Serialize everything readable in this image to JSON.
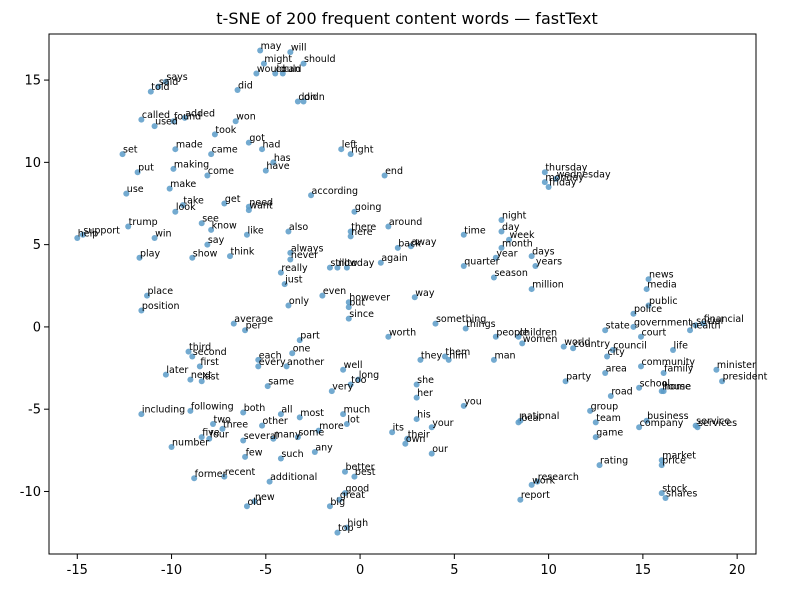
{
  "chart_data": {
    "type": "scatter",
    "title": "t-SNE of 200 frequent content words — fastText",
    "xlabel": "",
    "ylabel": "",
    "xlim": [
      -16.5,
      21.0
    ],
    "ylim": [
      -13.8,
      17.8
    ],
    "xticks": [
      -15,
      -10,
      -5,
      0,
      5,
      10,
      15,
      20
    ],
    "yticks": [
      -10,
      -5,
      0,
      5,
      10,
      15
    ],
    "grid": false,
    "marker_color": "#5b9bc8",
    "points": [
      {
        "label": "may",
        "x": -5.3,
        "y": 16.8
      },
      {
        "label": "will",
        "x": -3.7,
        "y": 16.7
      },
      {
        "label": "might",
        "x": -5.1,
        "y": 16.0
      },
      {
        "label": "should",
        "x": -3.0,
        "y": 16.0
      },
      {
        "label": "would",
        "x": -5.5,
        "y": 15.4
      },
      {
        "label": "can",
        "x": -4.1,
        "y": 15.4
      },
      {
        "label": "could",
        "x": -4.5,
        "y": 15.4
      },
      {
        "label": "says",
        "x": -10.3,
        "y": 14.9
      },
      {
        "label": "said",
        "x": -10.7,
        "y": 14.6
      },
      {
        "label": "told",
        "x": -11.1,
        "y": 14.3
      },
      {
        "label": "did",
        "x": -6.5,
        "y": 14.4
      },
      {
        "label": "don",
        "x": -3.3,
        "y": 13.7
      },
      {
        "label": "didn",
        "x": -3.0,
        "y": 13.7
      },
      {
        "label": "called",
        "x": -11.6,
        "y": 12.6
      },
      {
        "label": "used",
        "x": -10.9,
        "y": 12.2
      },
      {
        "label": "added",
        "x": -9.3,
        "y": 12.7
      },
      {
        "label": "found",
        "x": -9.9,
        "y": 12.5
      },
      {
        "label": "won",
        "x": -6.6,
        "y": 12.5
      },
      {
        "label": "took",
        "x": -7.7,
        "y": 11.7
      },
      {
        "label": "got",
        "x": -5.9,
        "y": 11.2
      },
      {
        "label": "set",
        "x": -12.6,
        "y": 10.5
      },
      {
        "label": "made",
        "x": -9.8,
        "y": 10.8
      },
      {
        "label": "came",
        "x": -7.9,
        "y": 10.5
      },
      {
        "label": "had",
        "x": -5.2,
        "y": 10.8
      },
      {
        "label": "has",
        "x": -4.6,
        "y": 10.0
      },
      {
        "label": "left",
        "x": -1.0,
        "y": 10.8
      },
      {
        "label": "right",
        "x": -0.5,
        "y": 10.5
      },
      {
        "label": "put",
        "x": -11.8,
        "y": 9.4
      },
      {
        "label": "making",
        "x": -9.9,
        "y": 9.6
      },
      {
        "label": "come",
        "x": -8.1,
        "y": 9.2
      },
      {
        "label": "have",
        "x": -5.0,
        "y": 9.5
      },
      {
        "label": "end",
        "x": 1.3,
        "y": 9.2
      },
      {
        "label": "thursday",
        "x": 9.8,
        "y": 9.4
      },
      {
        "label": "wednesday",
        "x": 10.4,
        "y": 9.0
      },
      {
        "label": "monday",
        "x": 9.8,
        "y": 8.8
      },
      {
        "label": "friday",
        "x": 10.0,
        "y": 8.5
      },
      {
        "label": "use",
        "x": -12.4,
        "y": 8.1
      },
      {
        "label": "make",
        "x": -10.1,
        "y": 8.4
      },
      {
        "label": "according",
        "x": -2.6,
        "y": 8.0
      },
      {
        "label": "take",
        "x": -9.4,
        "y": 7.4
      },
      {
        "label": "get",
        "x": -7.2,
        "y": 7.5
      },
      {
        "label": "look",
        "x": -9.8,
        "y": 7.0
      },
      {
        "label": "need",
        "x": -5.9,
        "y": 7.3
      },
      {
        "label": "want",
        "x": -5.9,
        "y": 7.1
      },
      {
        "label": "going",
        "x": -0.3,
        "y": 7.0
      },
      {
        "label": "trump",
        "x": -12.3,
        "y": 6.1
      },
      {
        "label": "see",
        "x": -8.4,
        "y": 6.3
      },
      {
        "label": "know",
        "x": -7.9,
        "y": 5.9
      },
      {
        "label": "like",
        "x": -6.0,
        "y": 5.6
      },
      {
        "label": "also",
        "x": -3.8,
        "y": 5.8
      },
      {
        "label": "there",
        "x": -0.5,
        "y": 5.8
      },
      {
        "label": "around",
        "x": 1.5,
        "y": 6.1
      },
      {
        "label": "night",
        "x": 7.5,
        "y": 6.5
      },
      {
        "label": "day",
        "x": 7.5,
        "y": 5.8
      },
      {
        "label": "time",
        "x": 5.5,
        "y": 5.6
      },
      {
        "label": "week",
        "x": 7.9,
        "y": 5.3
      },
      {
        "label": "help",
        "x": -15.0,
        "y": 5.4
      },
      {
        "label": "support",
        "x": -14.7,
        "y": 5.6
      },
      {
        "label": "win",
        "x": -10.9,
        "y": 5.4
      },
      {
        "label": "here",
        "x": -0.5,
        "y": 5.5
      },
      {
        "label": "say",
        "x": -8.1,
        "y": 5.0
      },
      {
        "label": "back",
        "x": 2.0,
        "y": 4.8
      },
      {
        "label": "away",
        "x": 2.7,
        "y": 4.9
      },
      {
        "label": "month",
        "x": 7.5,
        "y": 4.8
      },
      {
        "label": "play",
        "x": -11.7,
        "y": 4.2
      },
      {
        "label": "show",
        "x": -8.9,
        "y": 4.2
      },
      {
        "label": "think",
        "x": -6.9,
        "y": 4.3
      },
      {
        "label": "always",
        "x": -3.7,
        "y": 4.5
      },
      {
        "label": "never",
        "x": -3.7,
        "y": 4.1
      },
      {
        "label": "days",
        "x": 9.1,
        "y": 4.3
      },
      {
        "label": "year",
        "x": 7.2,
        "y": 4.2
      },
      {
        "label": "again",
        "x": 1.1,
        "y": 3.9
      },
      {
        "label": "quarter",
        "x": 5.5,
        "y": 3.7
      },
      {
        "label": "years",
        "x": 9.3,
        "y": 3.7
      },
      {
        "label": "really",
        "x": -4.2,
        "y": 3.3
      },
      {
        "label": "still",
        "x": -1.6,
        "y": 3.6
      },
      {
        "label": "now",
        "x": -1.2,
        "y": 3.6
      },
      {
        "label": "today",
        "x": -0.7,
        "y": 3.6
      },
      {
        "label": "season",
        "x": 7.1,
        "y": 3.0
      },
      {
        "label": "news",
        "x": 15.3,
        "y": 2.9
      },
      {
        "label": "just",
        "x": -4.0,
        "y": 2.6
      },
      {
        "label": "million",
        "x": 9.1,
        "y": 2.3
      },
      {
        "label": "media",
        "x": 15.2,
        "y": 2.3
      },
      {
        "label": "place",
        "x": -11.3,
        "y": 1.9
      },
      {
        "label": "even",
        "x": -2.0,
        "y": 1.9
      },
      {
        "label": "way",
        "x": 2.9,
        "y": 1.8
      },
      {
        "label": "however",
        "x": -0.6,
        "y": 1.5
      },
      {
        "label": "only",
        "x": -3.8,
        "y": 1.3
      },
      {
        "label": "but",
        "x": -0.6,
        "y": 1.2
      },
      {
        "label": "position",
        "x": -11.6,
        "y": 1.0
      },
      {
        "label": "public",
        "x": 15.3,
        "y": 1.3
      },
      {
        "label": "police",
        "x": 14.5,
        "y": 0.8
      },
      {
        "label": "since",
        "x": -0.6,
        "y": 0.5
      },
      {
        "label": "average",
        "x": -6.7,
        "y": 0.2
      },
      {
        "label": "something",
        "x": 4.0,
        "y": 0.2
      },
      {
        "label": "social",
        "x": 17.8,
        "y": 0.1
      },
      {
        "label": "financial",
        "x": 18.2,
        "y": 0.2
      },
      {
        "label": "per",
        "x": -6.1,
        "y": -0.2
      },
      {
        "label": "things",
        "x": 5.6,
        "y": -0.1
      },
      {
        "label": "government",
        "x": 14.5,
        "y": 0.0
      },
      {
        "label": "state",
        "x": 13.0,
        "y": -0.2
      },
      {
        "label": "health",
        "x": 17.5,
        "y": -0.2
      },
      {
        "label": "part",
        "x": -3.2,
        "y": -0.8
      },
      {
        "label": "worth",
        "x": 1.5,
        "y": -0.6
      },
      {
        "label": "people",
        "x": 7.2,
        "y": -0.6
      },
      {
        "label": "children",
        "x": 8.4,
        "y": -0.6
      },
      {
        "label": "court",
        "x": 14.9,
        "y": -0.6
      },
      {
        "label": "women",
        "x": 8.6,
        "y": -1.0
      },
      {
        "label": "world",
        "x": 10.8,
        "y": -1.2
      },
      {
        "label": "country",
        "x": 11.3,
        "y": -1.3
      },
      {
        "label": "third",
        "x": -9.1,
        "y": -1.5
      },
      {
        "label": "second",
        "x": -8.9,
        "y": -1.8
      },
      {
        "label": "one",
        "x": -3.6,
        "y": -1.6
      },
      {
        "label": "council",
        "x": 13.4,
        "y": -1.4
      },
      {
        "label": "life",
        "x": 16.6,
        "y": -1.4
      },
      {
        "label": "city",
        "x": 13.1,
        "y": -1.8
      },
      {
        "label": "each",
        "x": -5.4,
        "y": -2.0
      },
      {
        "label": "first",
        "x": -8.5,
        "y": -2.4
      },
      {
        "label": "every",
        "x": -5.4,
        "y": -2.4
      },
      {
        "label": "another",
        "x": -3.9,
        "y": -2.4
      },
      {
        "label": "they",
        "x": 3.2,
        "y": -2.0
      },
      {
        "label": "them",
        "x": 4.5,
        "y": -1.8
      },
      {
        "label": "him",
        "x": 4.7,
        "y": -2.0
      },
      {
        "label": "man",
        "x": 7.1,
        "y": -2.0
      },
      {
        "label": "well",
        "x": -0.9,
        "y": -2.6
      },
      {
        "label": "community",
        "x": 14.9,
        "y": -2.4
      },
      {
        "label": "area",
        "x": 13.0,
        "y": -2.8
      },
      {
        "label": "family",
        "x": 16.1,
        "y": -2.8
      },
      {
        "label": "minister",
        "x": 18.9,
        "y": -2.6
      },
      {
        "label": "later",
        "x": -10.3,
        "y": -2.9
      },
      {
        "label": "next",
        "x": -9.0,
        "y": -3.2
      },
      {
        "label": "last",
        "x": -8.4,
        "y": -3.3
      },
      {
        "label": "long",
        "x": -0.1,
        "y": -3.2
      },
      {
        "label": "party",
        "x": 10.9,
        "y": -3.3
      },
      {
        "label": "president",
        "x": 19.2,
        "y": -3.3
      },
      {
        "label": "same",
        "x": -4.9,
        "y": -3.6
      },
      {
        "label": "too",
        "x": -0.5,
        "y": -3.5
      },
      {
        "label": "very",
        "x": -1.5,
        "y": -3.9
      },
      {
        "label": "she",
        "x": 3.0,
        "y": -3.5
      },
      {
        "label": "school",
        "x": 14.8,
        "y": -3.7
      },
      {
        "label": "house",
        "x": 16.0,
        "y": -3.9
      },
      {
        "label": "home",
        "x": 16.1,
        "y": -3.9
      },
      {
        "label": "road",
        "x": 13.3,
        "y": -4.2
      },
      {
        "label": "her",
        "x": 3.0,
        "y": -4.3
      },
      {
        "label": "you",
        "x": 5.5,
        "y": -4.8
      },
      {
        "label": "group",
        "x": 12.2,
        "y": -5.1
      },
      {
        "label": "including",
        "x": -11.6,
        "y": -5.3
      },
      {
        "label": "following",
        "x": -9.0,
        "y": -5.1
      },
      {
        "label": "both",
        "x": -6.2,
        "y": -5.2
      },
      {
        "label": "all",
        "x": -4.2,
        "y": -5.3
      },
      {
        "label": "most",
        "x": -3.2,
        "y": -5.5
      },
      {
        "label": "much",
        "x": -0.9,
        "y": -5.3
      },
      {
        "label": "his",
        "x": 3.0,
        "y": -5.6
      },
      {
        "label": "local",
        "x": 8.4,
        "y": -5.8
      },
      {
        "label": "national",
        "x": 8.5,
        "y": -5.7
      },
      {
        "label": "team",
        "x": 12.5,
        "y": -5.8
      },
      {
        "label": "business",
        "x": 15.2,
        "y": -5.7
      },
      {
        "label": "other",
        "x": -5.2,
        "y": -6.0
      },
      {
        "label": "two",
        "x": -7.8,
        "y": -5.9
      },
      {
        "label": "lot",
        "x": -0.7,
        "y": -5.9
      },
      {
        "label": "three",
        "x": -7.3,
        "y": -6.2
      },
      {
        "label": "your",
        "x": 3.8,
        "y": -6.1
      },
      {
        "label": "company",
        "x": 14.8,
        "y": -6.1
      },
      {
        "label": "service",
        "x": 17.8,
        "y": -6.0
      },
      {
        "label": "services",
        "x": 17.9,
        "y": -6.1
      },
      {
        "label": "more",
        "x": -2.2,
        "y": -6.3
      },
      {
        "label": "its",
        "x": 1.7,
        "y": -6.4
      },
      {
        "label": "five",
        "x": -8.4,
        "y": -6.7
      },
      {
        "label": "four",
        "x": -8.0,
        "y": -6.8
      },
      {
        "label": "many",
        "x": -4.6,
        "y": -6.8
      },
      {
        "label": "some",
        "x": -3.3,
        "y": -6.7
      },
      {
        "label": "several",
        "x": -6.2,
        "y": -6.9
      },
      {
        "label": "their",
        "x": 2.5,
        "y": -6.8
      },
      {
        "label": "game",
        "x": 12.5,
        "y": -6.7
      },
      {
        "label": "own",
        "x": 2.4,
        "y": -7.1
      },
      {
        "label": "number",
        "x": -10.0,
        "y": -7.3
      },
      {
        "label": "any",
        "x": -2.4,
        "y": -7.6
      },
      {
        "label": "few",
        "x": -6.1,
        "y": -7.9
      },
      {
        "label": "such",
        "x": -4.2,
        "y": -8.0
      },
      {
        "label": "our",
        "x": 3.8,
        "y": -7.7
      },
      {
        "label": "market",
        "x": 16.0,
        "y": -8.1
      },
      {
        "label": "price",
        "x": 16.0,
        "y": -8.4
      },
      {
        "label": "rating",
        "x": 12.7,
        "y": -8.4
      },
      {
        "label": "recent",
        "x": -7.2,
        "y": -9.1
      },
      {
        "label": "former",
        "x": -8.8,
        "y": -9.2
      },
      {
        "label": "better",
        "x": -0.8,
        "y": -8.8
      },
      {
        "label": "best",
        "x": -0.3,
        "y": -9.1
      },
      {
        "label": "additional",
        "x": -4.8,
        "y": -9.4
      },
      {
        "label": "research",
        "x": 9.4,
        "y": -9.4
      },
      {
        "label": "work",
        "x": 9.1,
        "y": -9.6
      },
      {
        "label": "good",
        "x": -0.8,
        "y": -10.1
      },
      {
        "label": "stock",
        "x": 16.0,
        "y": -10.1
      },
      {
        "label": "shares",
        "x": 16.2,
        "y": -10.4
      },
      {
        "label": "report",
        "x": 8.5,
        "y": -10.5
      },
      {
        "label": "great",
        "x": -1.1,
        "y": -10.5
      },
      {
        "label": "new",
        "x": -5.6,
        "y": -10.6
      },
      {
        "label": "old",
        "x": -6.0,
        "y": -10.9
      },
      {
        "label": "big",
        "x": -1.6,
        "y": -10.9
      },
      {
        "label": "high",
        "x": -0.7,
        "y": -12.2
      },
      {
        "label": "top",
        "x": -1.2,
        "y": -12.5
      }
    ]
  }
}
